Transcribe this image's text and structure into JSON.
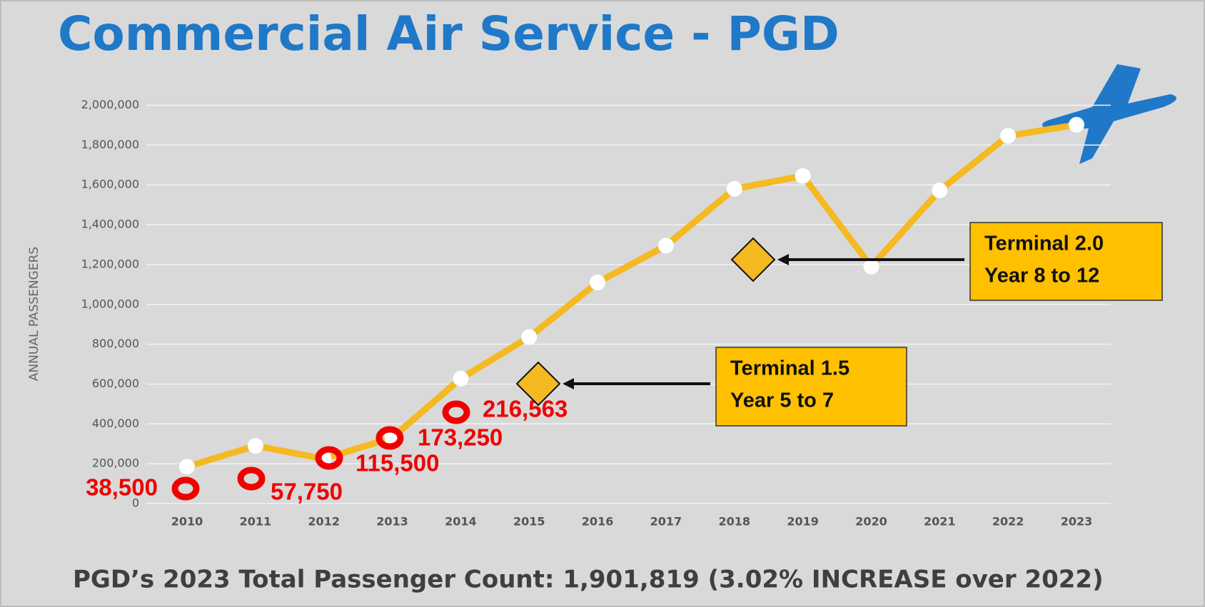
{
  "chart_data": {
    "type": "line",
    "title": "Commercial Air Service - PGD",
    "ylabel": "ANNUAL PASSENGERS",
    "categories": [
      "2010",
      "2011",
      "2012",
      "2013",
      "2014",
      "2015",
      "2016",
      "2017",
      "2018",
      "2019",
      "2020",
      "2021",
      "2022",
      "2023"
    ],
    "series": [
      {
        "name": "Annual Passengers",
        "color": "#f5b921",
        "values": [
          185000,
          290000,
          225000,
          331000,
          628000,
          836000,
          1110000,
          1295000,
          1580000,
          1645000,
          1190000,
          1572000,
          1846000,
          1901819
        ]
      }
    ],
    "ylim": [
      0,
      2000000
    ],
    "yticks": [
      0,
      {
        "value": 200000,
        "label": "200,000"
      },
      {
        "value": 400000,
        "label": "400,000"
      },
      {
        "value": 600000,
        "label": "600,000"
      },
      {
        "value": 800000,
        "label": "800,000"
      },
      {
        "value": 1000000,
        "label": "1,000,000"
      },
      {
        "value": 1200000,
        "label": "1,200,000"
      },
      {
        "value": 1400000,
        "label": "1,400,000"
      },
      {
        "value": 1600000,
        "label": "1,600,000"
      },
      {
        "value": 1800000,
        "label": "1,800,000"
      },
      {
        "value": 2000000,
        "label": "2,000,000"
      }
    ],
    "grid": true,
    "annotations": [
      "38,500",
      "57,750",
      "115,500",
      "173,250",
      "216,563"
    ],
    "terminals": [
      [
        "Terminal 1.5",
        "Year 5 to 7"
      ],
      [
        "Terminal 2.0",
        "Year 8 to 12"
      ]
    ],
    "footer": "PGD’s 2023 Total Passenger Count: 1,901,819 (3.02% INCREASE over 2022)"
  }
}
